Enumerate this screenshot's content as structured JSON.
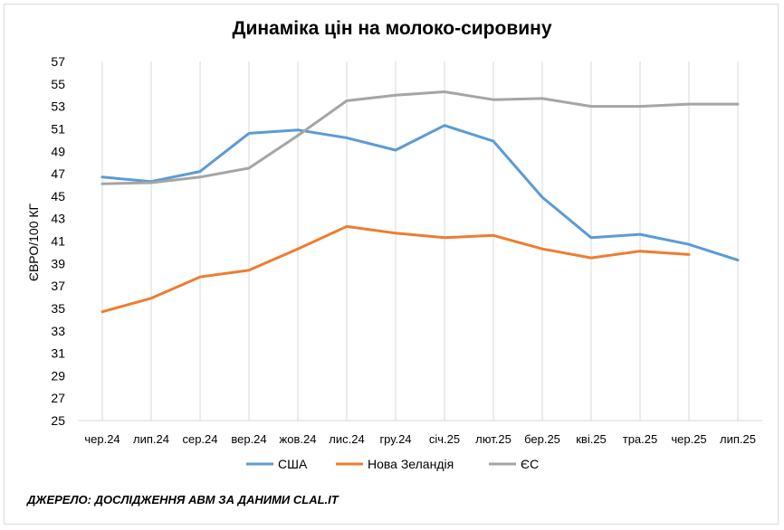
{
  "chart_data": {
    "type": "line",
    "title": "Динаміка цін на молоко-сировину",
    "xlabel": "",
    "ylabel": "ЄВРО/100 КГ",
    "categories": [
      "чер.24",
      "лип.24",
      "сер.24",
      "вер.24",
      "жов.24",
      "лис.24",
      "гру.24",
      "січ.25",
      "лют.25",
      "бер.25",
      "кві.25",
      "тра.25",
      "чер.25",
      "лип.25"
    ],
    "ylim": [
      25,
      57
    ],
    "yticks": [
      25,
      27,
      29,
      31,
      33,
      35,
      37,
      39,
      41,
      43,
      45,
      47,
      49,
      51,
      53,
      55,
      57
    ],
    "grid": "vertical",
    "legend_position": "bottom",
    "series": [
      {
        "name": "США",
        "color": "#5b9bd5",
        "values": [
          46.7,
          46.3,
          47.2,
          50.6,
          50.9,
          50.2,
          49.1,
          51.3,
          49.9,
          44.9,
          41.3,
          41.6,
          40.7,
          39.3
        ]
      },
      {
        "name": "Нова Зеландія",
        "color": "#ed7d31",
        "values": [
          34.7,
          35.9,
          37.8,
          38.4,
          40.3,
          42.3,
          41.7,
          41.3,
          41.5,
          40.3,
          39.5,
          40.1,
          39.8,
          null
        ]
      },
      {
        "name": "ЄС",
        "color": "#a5a5a5",
        "values": [
          46.1,
          46.2,
          46.7,
          47.5,
          50.4,
          53.5,
          54.0,
          54.3,
          53.6,
          53.7,
          53.0,
          53.0,
          53.2,
          53.2
        ]
      }
    ]
  },
  "source_note": "ДЖЕРЕЛО: ДОСЛІДЖЕННЯ АВМ ЗА ДАНИМИ CLAL.IT"
}
